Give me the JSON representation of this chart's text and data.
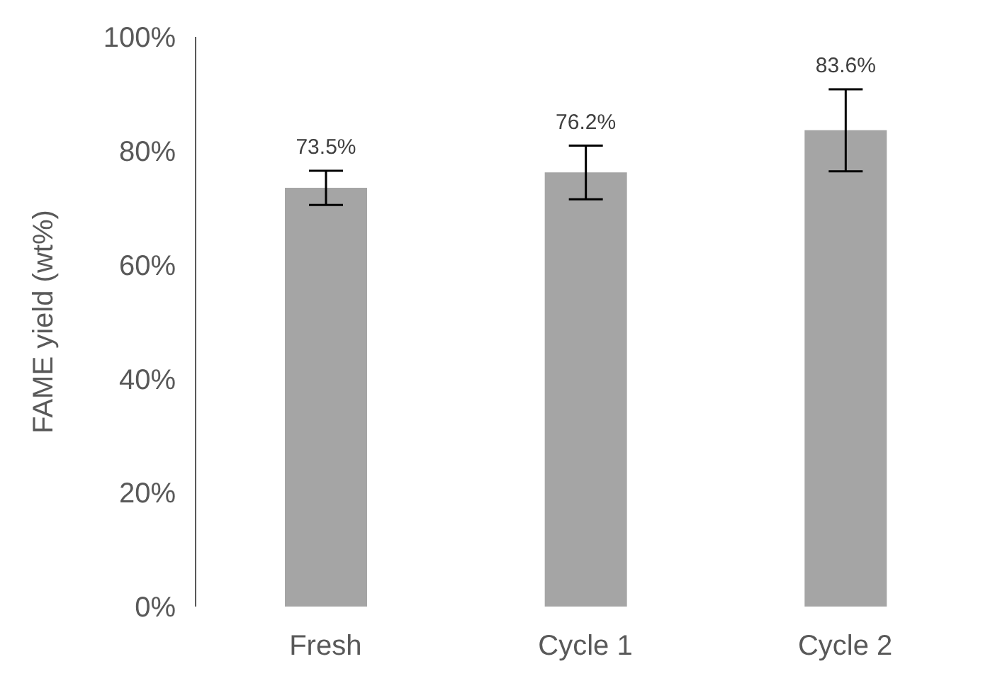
{
  "chart_data": {
    "type": "bar",
    "ylabel": "FAME yield (wt%)",
    "categories": [
      "Fresh",
      "Cycle 1",
      "Cycle 2"
    ],
    "values": [
      73.5,
      76.2,
      83.6
    ],
    "errors": [
      3,
      4.7,
      7.2
    ],
    "value_labels": [
      "73.5%",
      "76.2%",
      "83.6%"
    ],
    "color": "#a5a5a5",
    "ylim": [
      0,
      100
    ],
    "yticks": [
      {
        "value": 0,
        "label": "0%"
      },
      {
        "value": 20,
        "label": "20%"
      },
      {
        "value": 40,
        "label": "40%"
      },
      {
        "value": 60,
        "label": "60%"
      },
      {
        "value": 80,
        "label": "80%"
      },
      {
        "value": 100,
        "label": "100%"
      }
    ],
    "grid": false,
    "legend": false
  }
}
